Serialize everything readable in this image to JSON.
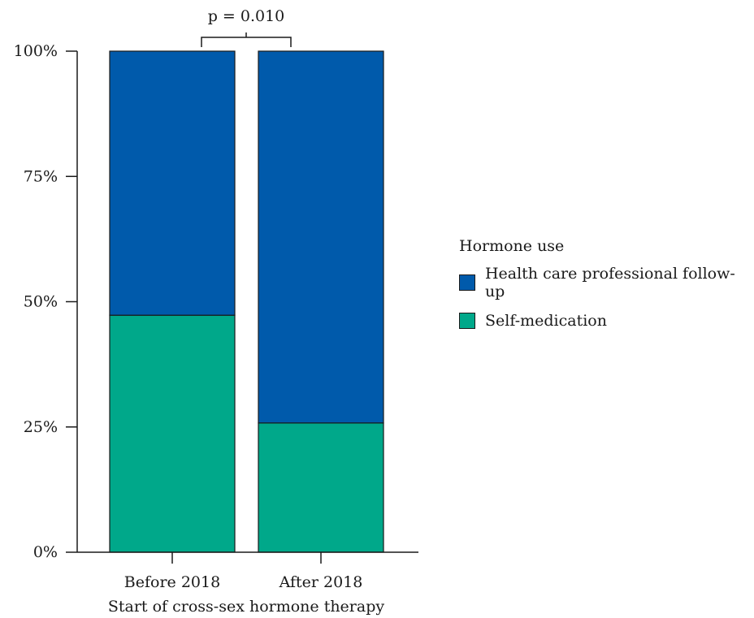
{
  "chart_data": {
    "type": "bar",
    "stacked": true,
    "categories": [
      "Before 2018",
      "After 2018"
    ],
    "series": [
      {
        "name": "Self-medication",
        "values": [
          47.3,
          25.8
        ],
        "color": "#00a88a"
      },
      {
        "name": "Health care professional follow-up",
        "values": [
          52.7,
          74.2
        ],
        "color": "#005aab"
      }
    ],
    "xlabel": "Start of cross-sex hormone therapy",
    "ylabel": "",
    "ylim": [
      0,
      100
    ],
    "yticks": [
      "0%",
      "25%",
      "50%",
      "75%",
      "100%"
    ],
    "grid": false,
    "legend_title": "Hormone use",
    "legend_placement": "right",
    "annotation": "p = 0.010"
  }
}
